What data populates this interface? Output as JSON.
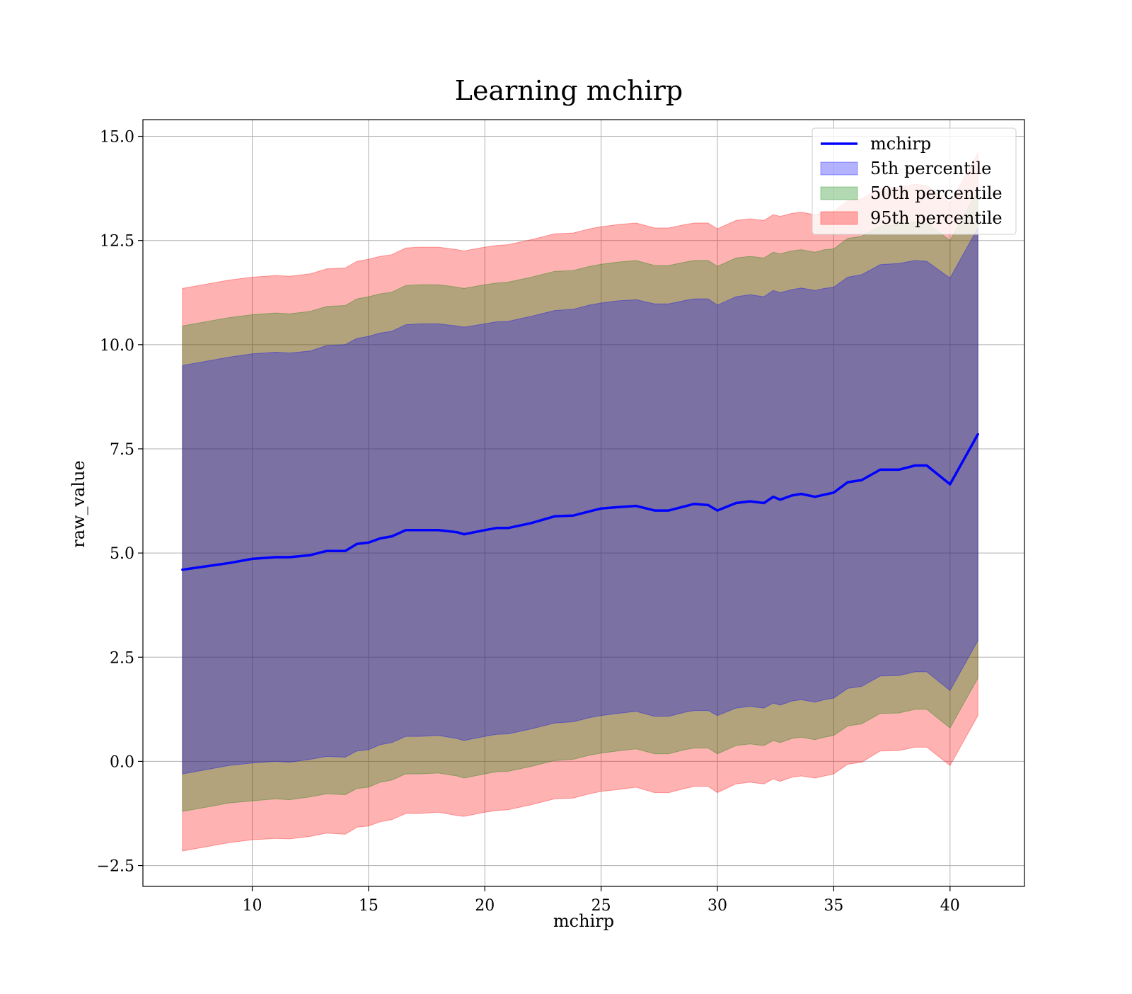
{
  "chart_data": {
    "type": "area",
    "title": "Learning mchirp",
    "xlabel": "mchirp",
    "ylabel": "raw_value",
    "xlim": [
      5.3,
      43.2
    ],
    "ylim": [
      -3.0,
      15.4
    ],
    "xticks": [
      10,
      15,
      20,
      25,
      30,
      35,
      40
    ],
    "yticks": [
      -2.5,
      0.0,
      2.5,
      5.0,
      7.5,
      10.0,
      12.5,
      15.0
    ],
    "ytick_labels": [
      "−2.5",
      "0.0",
      "2.5",
      "5.0",
      "7.5",
      "10.0",
      "12.5",
      "15.0"
    ],
    "grid": true,
    "legend_position": "top-right",
    "legend": [
      "mchirp",
      "5th percentile",
      "50th percentile",
      "95th percentile"
    ],
    "x": [
      7.0,
      8.0,
      9.0,
      10.0,
      11.0,
      11.6,
      12.5,
      13.2,
      14.0,
      14.5,
      15.0,
      15.5,
      16.0,
      16.6,
      17.2,
      18.0,
      18.8,
      19.1,
      20.0,
      20.5,
      21.0,
      22.0,
      23.0,
      23.8,
      24.5,
      25.0,
      25.7,
      26.5,
      27.3,
      27.9,
      28.6,
      29.0,
      29.6,
      30.0,
      30.8,
      31.4,
      32.0,
      32.4,
      32.7,
      33.2,
      33.6,
      34.2,
      34.6,
      35.0,
      35.6,
      36.2,
      37.0,
      37.8,
      38.5,
      39.0,
      40.0,
      41.2
    ],
    "series": [
      {
        "name": "mchirp",
        "color": "#0000ff",
        "values": [
          4.6,
          4.68,
          4.76,
          4.86,
          4.9,
          4.9,
          4.95,
          5.05,
          5.05,
          5.22,
          5.25,
          5.35,
          5.4,
          5.55,
          5.55,
          5.55,
          5.5,
          5.45,
          5.55,
          5.6,
          5.6,
          5.72,
          5.88,
          5.9,
          6.0,
          6.07,
          6.1,
          6.13,
          6.02,
          6.02,
          6.12,
          6.18,
          6.15,
          6.02,
          6.2,
          6.24,
          6.2,
          6.35,
          6.28,
          6.38,
          6.42,
          6.35,
          6.4,
          6.45,
          6.7,
          6.75,
          7.0,
          7.0,
          7.1,
          7.1,
          6.65,
          7.85
        ]
      },
      {
        "name": "5th percentile",
        "color": "#0000ff",
        "lower": [
          -0.3,
          -0.2,
          -0.1,
          -0.04,
          0.0,
          -0.02,
          0.05,
          0.12,
          0.1,
          0.25,
          0.28,
          0.4,
          0.45,
          0.6,
          0.6,
          0.62,
          0.55,
          0.5,
          0.6,
          0.65,
          0.66,
          0.78,
          0.92,
          0.95,
          1.05,
          1.1,
          1.15,
          1.2,
          1.08,
          1.08,
          1.18,
          1.22,
          1.22,
          1.1,
          1.28,
          1.32,
          1.28,
          1.4,
          1.35,
          1.45,
          1.48,
          1.42,
          1.48,
          1.52,
          1.75,
          1.8,
          2.05,
          2.06,
          2.15,
          2.15,
          1.7,
          2.9
        ],
        "upper": [
          9.5,
          9.6,
          9.7,
          9.78,
          9.82,
          9.8,
          9.85,
          9.98,
          10.0,
          10.15,
          10.2,
          10.28,
          10.32,
          10.48,
          10.5,
          10.5,
          10.45,
          10.42,
          10.5,
          10.55,
          10.56,
          10.68,
          10.82,
          10.85,
          10.95,
          11.0,
          11.05,
          11.08,
          10.98,
          10.98,
          11.06,
          11.1,
          11.1,
          10.95,
          11.15,
          11.2,
          11.15,
          11.3,
          11.25,
          11.32,
          11.36,
          11.3,
          11.35,
          11.38,
          11.62,
          11.68,
          11.92,
          11.95,
          12.02,
          12.0,
          11.6,
          12.8
        ]
      },
      {
        "name": "50th percentile",
        "color": "#008000",
        "lower": [
          -1.2,
          -1.1,
          -1.0,
          -0.95,
          -0.9,
          -0.92,
          -0.85,
          -0.78,
          -0.8,
          -0.65,
          -0.62,
          -0.5,
          -0.45,
          -0.3,
          -0.3,
          -0.28,
          -0.35,
          -0.4,
          -0.3,
          -0.25,
          -0.24,
          -0.12,
          0.02,
          0.05,
          0.15,
          0.2,
          0.25,
          0.3,
          0.18,
          0.18,
          0.28,
          0.32,
          0.32,
          0.18,
          0.38,
          0.42,
          0.38,
          0.5,
          0.45,
          0.55,
          0.58,
          0.52,
          0.58,
          0.62,
          0.85,
          0.9,
          1.15,
          1.16,
          1.25,
          1.25,
          0.8,
          2.0
        ],
        "upper": [
          10.45,
          10.55,
          10.65,
          10.72,
          10.76,
          10.74,
          10.8,
          10.92,
          10.94,
          11.1,
          11.15,
          11.22,
          11.26,
          11.42,
          11.44,
          11.44,
          11.38,
          11.35,
          11.44,
          11.48,
          11.5,
          11.62,
          11.76,
          11.78,
          11.88,
          11.93,
          11.98,
          12.02,
          11.9,
          11.9,
          11.98,
          12.02,
          12.02,
          11.88,
          12.08,
          12.12,
          12.08,
          12.22,
          12.18,
          12.25,
          12.28,
          12.22,
          12.28,
          12.3,
          12.55,
          12.6,
          12.85,
          12.88,
          12.95,
          12.92,
          12.5,
          13.7
        ]
      },
      {
        "name": "95th percentile",
        "color": "#ff0000",
        "lower": [
          -2.15,
          -2.05,
          -1.95,
          -1.88,
          -1.85,
          -1.86,
          -1.8,
          -1.72,
          -1.75,
          -1.58,
          -1.55,
          -1.45,
          -1.4,
          -1.25,
          -1.25,
          -1.22,
          -1.3,
          -1.32,
          -1.22,
          -1.18,
          -1.16,
          -1.04,
          -0.9,
          -0.88,
          -0.78,
          -0.72,
          -0.68,
          -0.62,
          -0.75,
          -0.75,
          -0.65,
          -0.6,
          -0.6,
          -0.75,
          -0.54,
          -0.5,
          -0.54,
          -0.42,
          -0.48,
          -0.38,
          -0.35,
          -0.4,
          -0.35,
          -0.3,
          -0.07,
          -0.02,
          0.25,
          0.26,
          0.34,
          0.34,
          -0.1,
          1.1
        ],
        "upper": [
          11.35,
          11.45,
          11.55,
          11.62,
          11.66,
          11.64,
          11.7,
          11.82,
          11.84,
          12.0,
          12.05,
          12.12,
          12.16,
          12.32,
          12.34,
          12.34,
          12.28,
          12.25,
          12.34,
          12.38,
          12.4,
          12.52,
          12.66,
          12.68,
          12.78,
          12.83,
          12.88,
          12.92,
          12.8,
          12.8,
          12.88,
          12.92,
          12.92,
          12.78,
          12.98,
          13.02,
          12.98,
          13.12,
          13.08,
          13.15,
          13.18,
          13.12,
          13.18,
          13.2,
          13.45,
          13.5,
          13.75,
          13.78,
          13.85,
          13.82,
          13.4,
          14.6
        ]
      }
    ]
  }
}
